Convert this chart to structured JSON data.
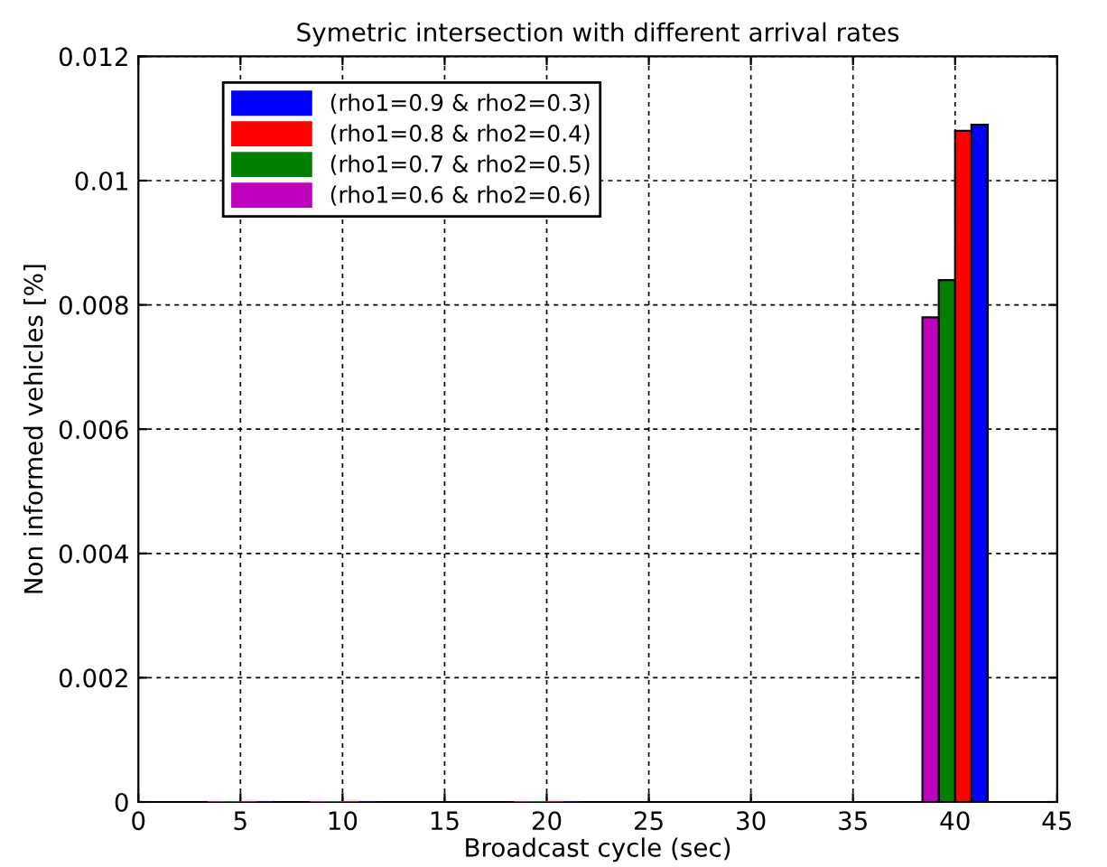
{
  "chart_data": {
    "type": "bar",
    "title": "Symetric intersection with different arrival rates",
    "xlabel": "Broadcast cycle (sec)",
    "ylabel": "Non informed vehicles [%]",
    "x": [
      5,
      10,
      20,
      40
    ],
    "series": [
      {
        "name": "(rho1=0.9 & rho2=0.3)",
        "color": "#0000ff",
        "values": [
          0,
          0,
          0,
          0.0109
        ]
      },
      {
        "name": "(rho1=0.8 & rho2=0.4)",
        "color": "#ff0000",
        "values": [
          0,
          0,
          0,
          0.0108
        ]
      },
      {
        "name": "(rho1=0.7 & rho2=0.5)",
        "color": "#007f00",
        "values": [
          0,
          0,
          0,
          0.0084
        ]
      },
      {
        "name": "(rho1=0.6 & rho2=0.6)",
        "color": "#bf00bf",
        "values": [
          0,
          0,
          0,
          0.0078
        ]
      }
    ],
    "xlim": [
      0,
      45
    ],
    "xticks": [
      0,
      5,
      10,
      15,
      20,
      25,
      30,
      35,
      40,
      45
    ],
    "ylim": [
      0,
      0.012
    ],
    "yticks": [
      0,
      0.002,
      0.004,
      0.006,
      0.008,
      0.01,
      0.012
    ],
    "grid": true,
    "legend": "top left"
  }
}
